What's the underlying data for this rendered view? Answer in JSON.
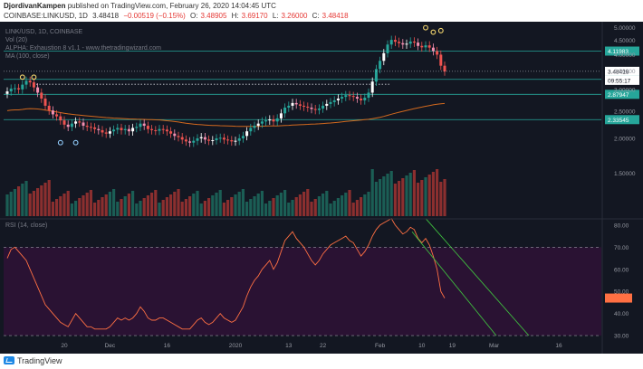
{
  "header": {
    "author": "DjordivanKampen",
    "published_text": "published on TradingView.com, February 26, 2020 14:04:45 UTC",
    "symbol": "COINBASE:LINKUSD, 1D",
    "last": "3.48418",
    "change": "−0.00519 (−0.15%)",
    "open_label": "O:",
    "open": "3.48905",
    "high_label": "H:",
    "high": "3.69170",
    "low_label": "L:",
    "low": "3.26000",
    "close_label": "C:",
    "close": "3.48418"
  },
  "indicators": {
    "title": "LINK/USD, 1D, COINBASE",
    "vol": "Vol (20)",
    "alpha": "ALPHA: Exhaustion 8 v1.1 - www.thetradingwizard.com",
    "ma": "MA (100, close)",
    "rsi": "RSI (14, close)"
  },
  "footer": {
    "brand": "TradingView"
  },
  "colors": {
    "up": "#26a69a",
    "up_alt": "#ffffff",
    "down": "#ef5350",
    "down_alt": "#f48fb1",
    "vol_up": "#1b5e55",
    "vol_down": "#8b2f2f",
    "ma": "#d2691e",
    "rsi": "#ff7043",
    "level_line": "#26a69a",
    "trend_line": "#3fbf3f",
    "band": "#2a1233",
    "marker": "#f5d76e",
    "marker_alt": "#90caf9",
    "price_tag": "#ffffff"
  },
  "chart_data": [
    {
      "type": "candlestick",
      "title": "LINK/USD, 1D, COINBASE",
      "x_ticks": [
        "20",
        "Dec",
        "16",
        "2020",
        "13",
        "22",
        "Feb",
        "10",
        "19",
        "Mar",
        "16"
      ],
      "y_ticks": [
        1.5,
        2.0,
        2.5,
        3.0,
        3.5,
        4.0,
        4.5,
        5.0
      ],
      "y_tick_labels": [
        "1.50000",
        "2.00000",
        "2.50000",
        "3.00000",
        "3.50000",
        "4.00000",
        "4.50000",
        "5.00000"
      ],
      "ylim": [
        1.05,
        5.1
      ],
      "scale": "log",
      "levels": [
        4.11983,
        3.26028,
        2.87947,
        2.33545
      ],
      "level_labels": [
        "4.11983",
        "3.26028",
        "2.87947",
        "2.33545"
      ],
      "current_price": "3.48418",
      "countdown": "09:55:17",
      "closes": [
        2.95,
        3.02,
        3.03,
        3.0,
        3.12,
        3.22,
        3.18,
        3.05,
        2.92,
        2.78,
        2.62,
        2.52,
        2.44,
        2.4,
        2.32,
        2.24,
        2.2,
        2.26,
        2.3,
        2.28,
        2.22,
        2.2,
        2.19,
        2.16,
        2.14,
        2.1,
        2.08,
        2.12,
        2.15,
        2.18,
        2.14,
        2.16,
        2.12,
        2.18,
        2.2,
        2.26,
        2.22,
        2.16,
        2.14,
        2.13,
        2.16,
        2.15,
        2.12,
        2.08,
        2.04,
        2.02,
        1.98,
        1.95,
        1.93,
        1.96,
        2.0,
        2.02,
        1.98,
        1.96,
        1.97,
        2.0,
        2.01,
        1.98,
        1.97,
        1.95,
        1.96,
        2.0,
        2.04,
        2.12,
        2.18,
        2.22,
        2.26,
        2.3,
        2.32,
        2.34,
        2.3,
        2.36,
        2.46,
        2.58,
        2.62,
        2.68,
        2.65,
        2.62,
        2.6,
        2.58,
        2.55,
        2.53,
        2.56,
        2.62,
        2.66,
        2.7,
        2.74,
        2.78,
        2.82,
        2.86,
        2.84,
        2.82,
        2.78,
        2.74,
        2.8,
        2.92,
        3.2,
        3.55,
        3.8,
        4.05,
        4.35,
        4.52,
        4.45,
        4.4,
        4.35,
        4.38,
        4.46,
        4.42,
        4.3,
        4.25,
        4.32,
        4.24,
        4.12,
        4.0,
        3.65,
        3.48
      ]
    },
    {
      "type": "line",
      "title": "RSI (14, close)",
      "y_ticks": [
        30,
        40,
        50,
        60,
        70,
        80
      ],
      "y_tick_labels": [
        "30.00",
        "40.00",
        "50.00",
        "60.00",
        "70.00",
        "80.00"
      ],
      "ylim": [
        28,
        82
      ],
      "bands": [
        30,
        70
      ],
      "values": [
        65,
        69,
        70,
        68,
        66,
        64,
        60,
        56,
        52,
        48,
        44,
        42,
        40,
        38,
        36,
        35,
        34,
        37,
        40,
        38,
        36,
        34,
        34,
        33,
        33,
        33,
        33,
        34,
        36,
        38,
        37,
        38,
        37,
        38,
        40,
        43,
        41,
        38,
        37,
        37,
        38,
        38,
        37,
        36,
        35,
        34,
        33,
        33,
        33,
        35,
        37,
        38,
        36,
        35,
        36,
        38,
        40,
        38,
        37,
        36,
        37,
        40,
        43,
        48,
        52,
        55,
        57,
        60,
        62,
        64,
        60,
        63,
        68,
        73,
        75,
        77,
        74,
        72,
        70,
        67,
        64,
        62,
        64,
        67,
        69,
        71,
        72,
        73,
        74,
        75,
        73,
        72,
        69,
        66,
        68,
        71,
        75,
        78,
        80,
        81,
        82,
        83,
        80,
        78,
        76,
        77,
        79,
        78,
        74,
        72,
        74,
        71,
        66,
        60,
        50,
        47
      ]
    }
  ]
}
